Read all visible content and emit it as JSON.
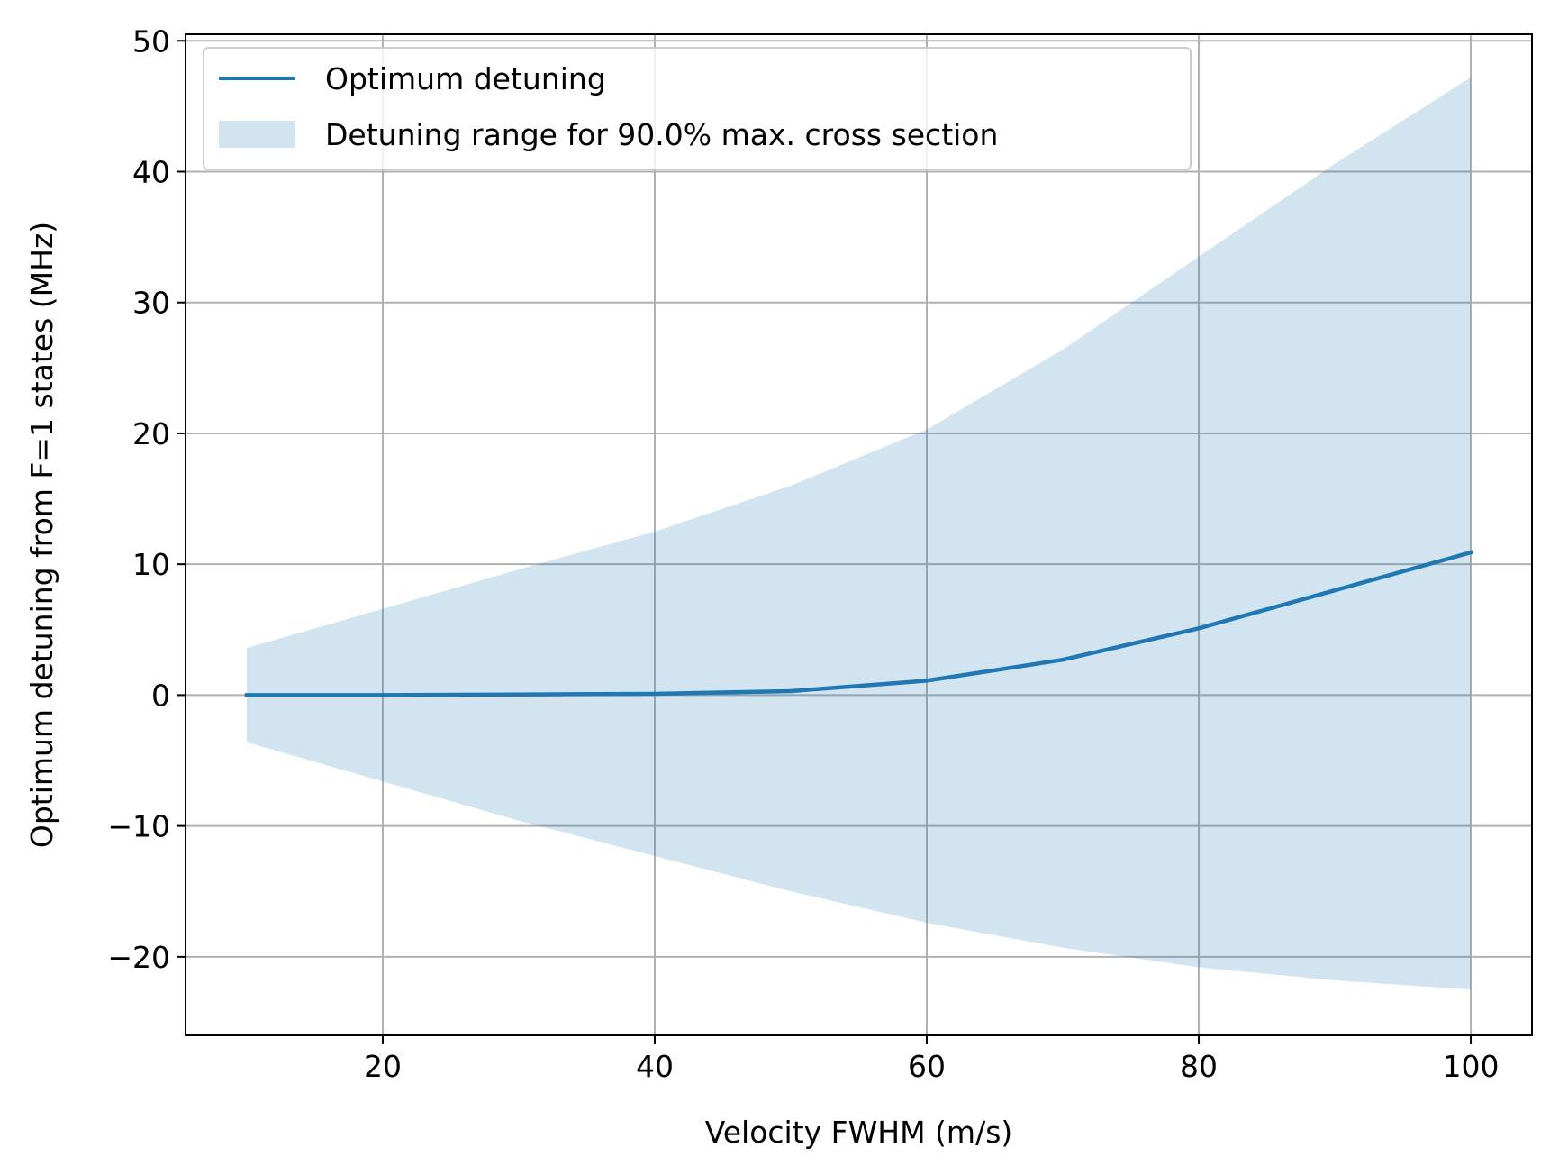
{
  "chart_data": {
    "type": "line",
    "title": "",
    "xlabel": "Velocity FWHM (m/s)",
    "ylabel": "Optimum detuning from F=1 states (MHz)",
    "xlim": [
      5.5,
      104.5
    ],
    "ylim": [
      -26,
      50.5
    ],
    "grid": true,
    "legend_position": "upper-left",
    "x_ticks": [
      20,
      40,
      60,
      80,
      100
    ],
    "x_tick_labels": [
      "20",
      "40",
      "60",
      "80",
      "100"
    ],
    "y_ticks": [
      -20,
      -10,
      0,
      10,
      20,
      30,
      40,
      50
    ],
    "y_tick_labels": [
      "−20",
      "−10",
      "0",
      "10",
      "20",
      "30",
      "40",
      "50"
    ],
    "x": [
      10,
      20,
      30,
      40,
      50,
      60,
      70,
      80,
      90,
      100
    ],
    "series": [
      {
        "name": "Optimum detuning",
        "kind": "line",
        "color": "#1f77b4",
        "values": [
          0.0,
          0.0,
          0.05,
          0.1,
          0.3,
          1.1,
          2.7,
          5.1,
          8.0,
          10.9
        ]
      }
    ],
    "band": {
      "name": "Detuning range for 90.0% max. cross section",
      "kind": "fill_between",
      "color": "#1f77b4",
      "opacity": 0.2,
      "upper": [
        3.6,
        6.6,
        9.6,
        12.5,
        16.0,
        20.3,
        26.4,
        33.5,
        40.6,
        47.2
      ],
      "lower": [
        -3.6,
        -6.6,
        -9.6,
        -12.3,
        -15.0,
        -17.4,
        -19.3,
        -20.8,
        -21.8,
        -22.5
      ]
    }
  }
}
